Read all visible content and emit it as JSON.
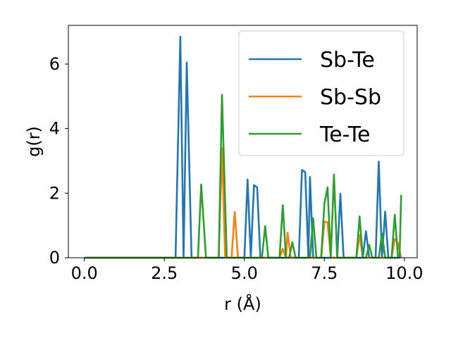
{
  "chart_data": {
    "type": "line",
    "xlabel": "r (Å)",
    "ylabel": "g(r)",
    "xlim": [
      -0.5,
      10.4
    ],
    "ylim": [
      0,
      7.2
    ],
    "xticks": [
      0.0,
      2.5,
      5.0,
      7.5,
      10.0
    ],
    "xtick_labels": [
      "0.0",
      "2.5",
      "5.0",
      "7.5",
      "10.0"
    ],
    "yticks": [
      0,
      2,
      4,
      6
    ],
    "ytick_labels": [
      "0",
      "2",
      "4",
      "6"
    ],
    "grid": false,
    "legend_position": "upper-right",
    "series": [
      {
        "name": "Sb-Te",
        "color": "#1f77b4",
        "points": [
          [
            0.0,
            0
          ],
          [
            2.85,
            0
          ],
          [
            3.0,
            6.85
          ],
          [
            3.1,
            0
          ],
          [
            3.2,
            6.05
          ],
          [
            3.35,
            0
          ],
          [
            5.0,
            0
          ],
          [
            5.1,
            2.42
          ],
          [
            5.2,
            0
          ],
          [
            5.3,
            2.25
          ],
          [
            5.4,
            2.18
          ],
          [
            5.5,
            0
          ],
          [
            6.7,
            0
          ],
          [
            6.8,
            2.72
          ],
          [
            6.9,
            2.65
          ],
          [
            7.0,
            0
          ],
          [
            7.05,
            2.5
          ],
          [
            7.15,
            0
          ],
          [
            7.9,
            0
          ],
          [
            8.0,
            1.98
          ],
          [
            8.1,
            0
          ],
          [
            8.7,
            0
          ],
          [
            8.8,
            0.82
          ],
          [
            8.9,
            0
          ],
          [
            9.1,
            0
          ],
          [
            9.2,
            2.98
          ],
          [
            9.3,
            0
          ],
          [
            9.4,
            1.43
          ],
          [
            9.5,
            0
          ],
          [
            9.8,
            0
          ]
        ]
      },
      {
        "name": "Sb-Sb",
        "color": "#ff7f0e",
        "points": [
          [
            0.0,
            0
          ],
          [
            4.2,
            0
          ],
          [
            4.3,
            3.4
          ],
          [
            4.4,
            0
          ],
          [
            4.6,
            0
          ],
          [
            4.7,
            1.42
          ],
          [
            4.8,
            0
          ],
          [
            6.1,
            0
          ],
          [
            6.2,
            0.28
          ],
          [
            6.3,
            0
          ],
          [
            6.35,
            0.78
          ],
          [
            6.45,
            0
          ],
          [
            7.4,
            0
          ],
          [
            7.5,
            1.12
          ],
          [
            7.6,
            1.1
          ],
          [
            7.7,
            0
          ],
          [
            8.5,
            0
          ],
          [
            8.6,
            0.7
          ],
          [
            8.7,
            0
          ],
          [
            9.6,
            0
          ],
          [
            9.7,
            0.58
          ],
          [
            9.8,
            0.45
          ],
          [
            9.9,
            0
          ]
        ]
      },
      {
        "name": "Te-Te",
        "color": "#2ca02c",
        "points": [
          [
            0.0,
            0
          ],
          [
            3.55,
            0
          ],
          [
            3.65,
            2.27
          ],
          [
            3.8,
            0
          ],
          [
            4.2,
            0
          ],
          [
            4.3,
            5.05
          ],
          [
            4.45,
            0
          ],
          [
            5.55,
            0
          ],
          [
            5.65,
            0.98
          ],
          [
            5.75,
            0
          ],
          [
            6.1,
            0
          ],
          [
            6.2,
            1.63
          ],
          [
            6.3,
            0
          ],
          [
            6.4,
            0
          ],
          [
            6.5,
            0.48
          ],
          [
            6.6,
            0
          ],
          [
            7.05,
            0
          ],
          [
            7.15,
            1.22
          ],
          [
            7.25,
            0
          ],
          [
            7.4,
            0
          ],
          [
            7.5,
            1.67
          ],
          [
            7.6,
            2.18
          ],
          [
            7.7,
            0
          ],
          [
            7.8,
            2.58
          ],
          [
            7.9,
            0
          ],
          [
            8.5,
            0
          ],
          [
            8.6,
            1.28
          ],
          [
            8.7,
            0
          ],
          [
            8.8,
            0
          ],
          [
            8.9,
            0.4
          ],
          [
            9.0,
            0
          ],
          [
            9.2,
            0
          ],
          [
            9.3,
            0.75
          ],
          [
            9.4,
            0
          ],
          [
            9.6,
            0
          ],
          [
            9.7,
            1.33
          ],
          [
            9.8,
            0
          ],
          [
            9.85,
            0
          ],
          [
            9.9,
            1.95
          ]
        ]
      }
    ]
  }
}
